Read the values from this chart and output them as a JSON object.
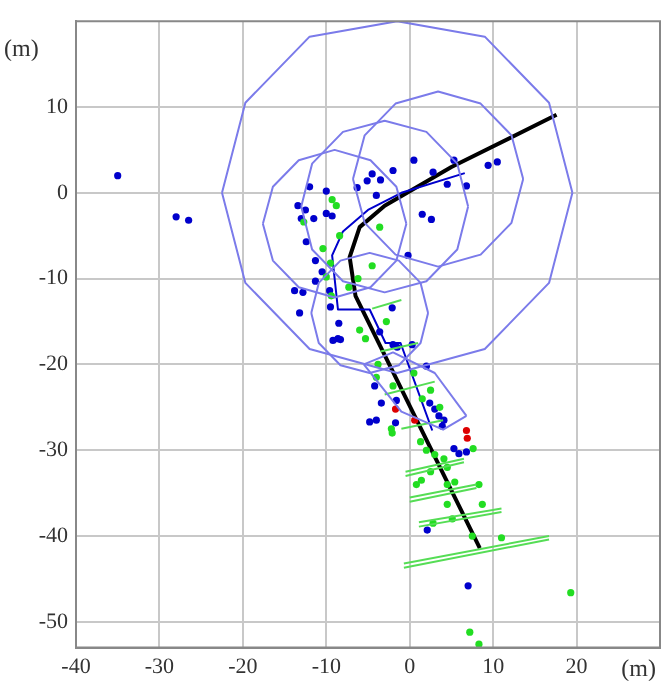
{
  "chart_data": {
    "type": "scatter",
    "xlabel": "(m)",
    "ylabel": "(m)",
    "xlim": [
      -40,
      30
    ],
    "ylim": [
      -53,
      20
    ],
    "xticks": [
      -40,
      -30,
      -20,
      -10,
      0,
      10,
      20
    ],
    "yticks": [
      -50,
      -40,
      -30,
      -20,
      -10,
      0,
      10
    ],
    "grid": true,
    "legend": false,
    "series": [
      {
        "type": "line",
        "color": "#7b7bea",
        "x": [
          19.5,
          16.7,
          9,
          -1.5,
          -12,
          -19.7,
          -22.5
        ],
        "values": [
          0,
          10.5,
          18.2,
          20,
          18.2,
          10.5,
          0
        ]
      },
      {
        "type": "line",
        "color": "#7b7bea",
        "x": [
          -22.5,
          -19.7,
          -12,
          -1.5,
          9,
          16.7,
          19.5
        ],
        "values": [
          0,
          -10.5,
          -18.2,
          -21,
          -18.2,
          -10.5,
          0
        ]
      },
      {
        "type": "line",
        "color": "#7b7bea",
        "x": [
          13.6,
          12.2,
          8.5,
          3.4,
          -1.7,
          -5.4,
          -6.8
        ],
        "values": [
          1.6,
          6.7,
          10.4,
          11.8,
          10.4,
          6.7,
          1.6
        ]
      },
      {
        "type": "line",
        "color": "#7b7bea",
        "x": [
          -6.8,
          -5.4,
          -1.7,
          3.4,
          8.5,
          12.2,
          13.6
        ],
        "values": [
          1.6,
          -3.5,
          -7.2,
          -8.6,
          -7.2,
          -3.5,
          1.6
        ]
      },
      {
        "type": "line",
        "color": "#7b7bea",
        "x": [
          7,
          5.7,
          2,
          -3,
          -8,
          -11.7,
          -13
        ],
        "values": [
          -1.6,
          3.4,
          7.1,
          8.4,
          7.1,
          3.4,
          -1.6
        ]
      },
      {
        "type": "line",
        "color": "#7b7bea",
        "x": [
          -13,
          -11.7,
          -8,
          -3,
          2,
          5.7,
          7
        ],
        "values": [
          -1.6,
          -6.6,
          -10.3,
          -11.6,
          -10.3,
          -6.6,
          -1.6
        ]
      },
      {
        "type": "line",
        "color": "#7b7bea",
        "x": [
          -0.4,
          -1.6,
          -4.7,
          -9,
          -13.3,
          -16.4,
          -17.6
        ],
        "values": [
          -3.6,
          0.7,
          3.8,
          5,
          3.8,
          0.7,
          -3.6
        ]
      },
      {
        "type": "line",
        "color": "#7b7bea",
        "x": [
          -17.6,
          -16.4,
          -13.3,
          -9,
          -4.7,
          -1.6,
          -0.4
        ],
        "values": [
          -3.6,
          -7.9,
          -11,
          -12.2,
          -11,
          -7.9,
          -3.6
        ]
      },
      {
        "type": "line",
        "color": "#7b7bea",
        "x": [
          2.2,
          1.3,
          -1.3,
          -4.8,
          -8.3,
          -10.9,
          -11.8
        ],
        "values": [
          -14,
          -10.5,
          -7.9,
          -7,
          -7.9,
          -10.5,
          -14
        ]
      },
      {
        "type": "line",
        "color": "#7b7bea",
        "x": [
          -11.8,
          -10.9,
          -8.3,
          -4.8,
          -1.3,
          1.3,
          2.2
        ],
        "values": [
          -14,
          -17.5,
          -20.1,
          -21,
          -20.1,
          -17.5,
          -14
        ]
      },
      {
        "type": "line",
        "color": "#7b7bea",
        "x": [
          -5.5,
          -2,
          3,
          6.8
        ],
        "values": [
          -20,
          -18.6,
          -21,
          -26
        ]
      },
      {
        "type": "line",
        "color": "#7b7bea",
        "x": [
          -5.5,
          -1,
          4,
          6.8
        ],
        "values": [
          -20,
          -25.5,
          -27.6,
          -26
        ]
      },
      {
        "type": "line",
        "color": "#55dd55",
        "x": [
          -0.7,
          16.7
        ],
        "values": [
          -43.2,
          -40
        ]
      },
      {
        "type": "line",
        "color": "#55dd55",
        "x": [
          -0.7,
          16.7
        ],
        "values": [
          -43.7,
          -40.4
        ]
      },
      {
        "type": "line",
        "color": "#55dd55",
        "x": [
          1.1,
          11
        ],
        "values": [
          -38.4,
          -36.8
        ]
      },
      {
        "type": "line",
        "color": "#55dd55",
        "x": [
          1.1,
          11
        ],
        "values": [
          -38.9,
          -37.2
        ]
      },
      {
        "type": "line",
        "color": "#55dd55",
        "x": [
          0,
          8
        ],
        "values": [
          -35.5,
          -34
        ]
      },
      {
        "type": "line",
        "color": "#55dd55",
        "x": [
          0,
          8
        ],
        "values": [
          -36,
          -34.4
        ]
      },
      {
        "type": "line",
        "color": "#55dd55",
        "x": [
          -0.5,
          6.5
        ],
        "values": [
          -32.5,
          -31
        ]
      },
      {
        "type": "line",
        "color": "#55dd55",
        "x": [
          -0.5,
          6.5
        ],
        "values": [
          -33,
          -31.4
        ]
      },
      {
        "type": "line",
        "color": "#55dd55",
        "x": [
          -1,
          4
        ],
        "values": [
          -27.5,
          -26.5
        ]
      },
      {
        "type": "line",
        "color": "#55dd55",
        "x": [
          -3,
          3
        ],
        "values": [
          -23.5,
          -22
        ]
      },
      {
        "type": "line",
        "color": "#55dd55",
        "x": [
          -3.5,
          1
        ],
        "values": [
          -18.5,
          -17.5
        ]
      },
      {
        "type": "line",
        "color": "#55dd55",
        "x": [
          -4.5,
          -1
        ],
        "values": [
          -13.5,
          -12.5
        ]
      },
      {
        "marker": "circle",
        "color": "#22dd22",
        "x": [
          -9.3,
          -8.8,
          -12.7,
          -8.4,
          -10.4,
          -9.5,
          -10,
          -9.4,
          -7.3,
          -6.2,
          -4.5,
          -3.6,
          -6,
          -5.3,
          -2.8,
          -3.8,
          -4,
          -2,
          0.5,
          2.5,
          1.5,
          3.6,
          -2.2,
          -2.1,
          1.3,
          2,
          3,
          4.1,
          4.5,
          2.5,
          1.4,
          0.8,
          4.5,
          5.4,
          8.3,
          7.6,
          8.7,
          4.5,
          5.1,
          2.8,
          11,
          7.5,
          19.3,
          7.2,
          8.3
        ],
        "values": [
          -0.8,
          -1.5,
          -3.4,
          -5,
          -6.5,
          -8.2,
          -9.8,
          -12,
          -11,
          -10,
          -8.5,
          -4,
          -16,
          -17,
          -15,
          -20,
          -21.5,
          -22.5,
          -21,
          -23,
          -24,
          -25,
          -27.5,
          -28,
          -29,
          -30,
          -30.5,
          -31,
          -32,
          -32.5,
          -33.5,
          -34,
          -34,
          -33.7,
          -34,
          -29.8,
          -36.3,
          -36.3,
          -38,
          -38.5,
          -40.2,
          -40,
          -46.6,
          -51.2,
          -52.6
        ]
      },
      {
        "marker": "circle",
        "color": "#0000cc",
        "x": [
          -35,
          -28,
          -26.5,
          10.5,
          9.4,
          5.3,
          2.8,
          0.5,
          -2,
          -3.5,
          -4.5,
          -5.1,
          -6.3,
          -10,
          -12,
          -13.4,
          -12.5,
          -13,
          -11.5,
          -10,
          -9.3,
          -4,
          2.6,
          1.5,
          4.5,
          6.8,
          -12.4,
          -11.3,
          -10.5,
          -11.3,
          -13.8,
          -12.8,
          -13.2,
          -9.6,
          -8.5,
          -8.6,
          -8.3,
          -3.6,
          -2,
          -1.5,
          0.3,
          2,
          -4.2,
          -3.4,
          -4,
          -1.6,
          -1.7,
          2.4,
          3,
          3.5,
          4.1,
          -4.8,
          3.9,
          5.3,
          5.9,
          6.8,
          2.1,
          7,
          -2.1,
          -0.2,
          -9.2,
          -9.5
        ],
        "values": [
          2,
          -2.8,
          -3.2,
          3.6,
          3.2,
          3.8,
          2.4,
          3.8,
          2.6,
          1.5,
          2.2,
          1.4,
          0.6,
          0.2,
          0.7,
          -1.5,
          -2,
          -3,
          -3,
          -2.4,
          -2.7,
          -0.3,
          -3.1,
          -2.5,
          1,
          0.8,
          -5.7,
          -7.9,
          -9.2,
          -10.3,
          -11.4,
          -11.6,
          -14,
          -11.4,
          -15.2,
          -17,
          -17.1,
          -16.2,
          -17.7,
          -18,
          -17.7,
          -20.2,
          -22.5,
          -24.5,
          -26.5,
          -24.2,
          -26.8,
          -24.5,
          -25.2,
          -26,
          -26.5,
          -26.7,
          -27.2,
          -29.8,
          -30.4,
          -30.2,
          -39.3,
          -45.8,
          -13.4,
          -7.3,
          -17.2,
          -13.3
        ]
      },
      {
        "marker": "circle",
        "color": "#dd0000",
        "x": [
          -1.7,
          0.6,
          6.8,
          6.9
        ],
        "values": [
          -25.2,
          -26.5,
          -27.7,
          -28.6
        ]
      },
      {
        "type": "line",
        "color": "#0000cc",
        "x": [
          6.6,
          -1,
          -5,
          -8,
          -9.3,
          -8.6,
          -4.8,
          -2.9,
          -1.1,
          2.7
        ],
        "values": [
          2.3,
          0,
          -2,
          -4.5,
          -7.3,
          -13.6,
          -13.6,
          -17.5,
          -17.5,
          -27.7
        ]
      },
      {
        "type": "line",
        "color": "#000000",
        "x": [
          17.6,
          5,
          -3,
          -6,
          -7.2,
          -6.5,
          8.4
        ],
        "values": [
          9.1,
          3,
          -1.5,
          -4,
          -7.5,
          -12,
          -41.4
        ]
      }
    ]
  }
}
